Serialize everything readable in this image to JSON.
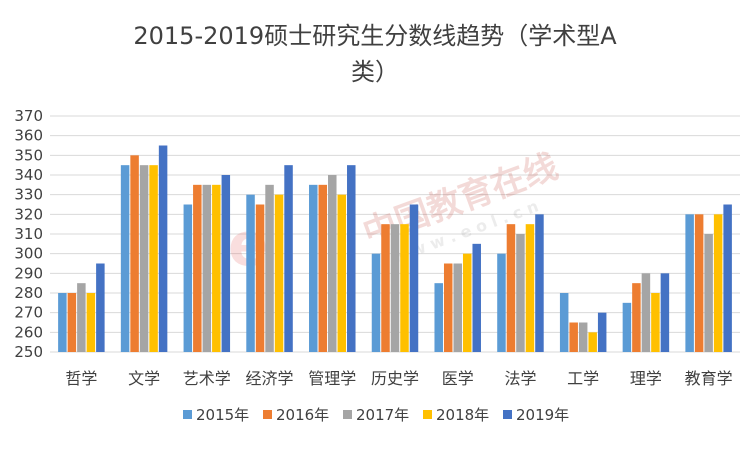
{
  "chart_data": {
    "type": "bar",
    "title_line1": "2015-2019硕士研究生分数线趋势（学术型A",
    "title_line2": "类）",
    "categories": [
      "哲学",
      "文学",
      "艺术学",
      "经济学",
      "管理学",
      "历史学",
      "医学",
      "法学",
      "工学",
      "理学",
      "教育学"
    ],
    "series": [
      {
        "name": "2015年",
        "color": "#5B9BD5",
        "values": [
          280,
          345,
          325,
          330,
          335,
          300,
          285,
          300,
          280,
          275,
          320
        ]
      },
      {
        "name": "2016年",
        "color": "#ED7D31",
        "values": [
          280,
          350,
          335,
          325,
          335,
          315,
          295,
          315,
          265,
          285,
          320
        ]
      },
      {
        "name": "2017年",
        "color": "#A5A5A5",
        "values": [
          285,
          345,
          335,
          335,
          340,
          315,
          295,
          310,
          265,
          290,
          310
        ]
      },
      {
        "name": "2018年",
        "color": "#FFC000",
        "values": [
          280,
          345,
          335,
          330,
          330,
          315,
          300,
          315,
          260,
          280,
          320
        ]
      },
      {
        "name": "2019年",
        "color": "#4472C4",
        "values": [
          295,
          355,
          340,
          345,
          345,
          325,
          305,
          320,
          270,
          290,
          325
        ]
      }
    ],
    "ylim": [
      250,
      370
    ],
    "yticks": [
      "250",
      "260",
      "270",
      "280",
      "290",
      "300",
      "310",
      "320",
      "330",
      "340",
      "350",
      "360",
      "370"
    ],
    "grid": true,
    "legend_position": "bottom"
  },
  "watermark": {
    "main": "中国教育在线",
    "sub": "w w w . e o l . c n"
  }
}
